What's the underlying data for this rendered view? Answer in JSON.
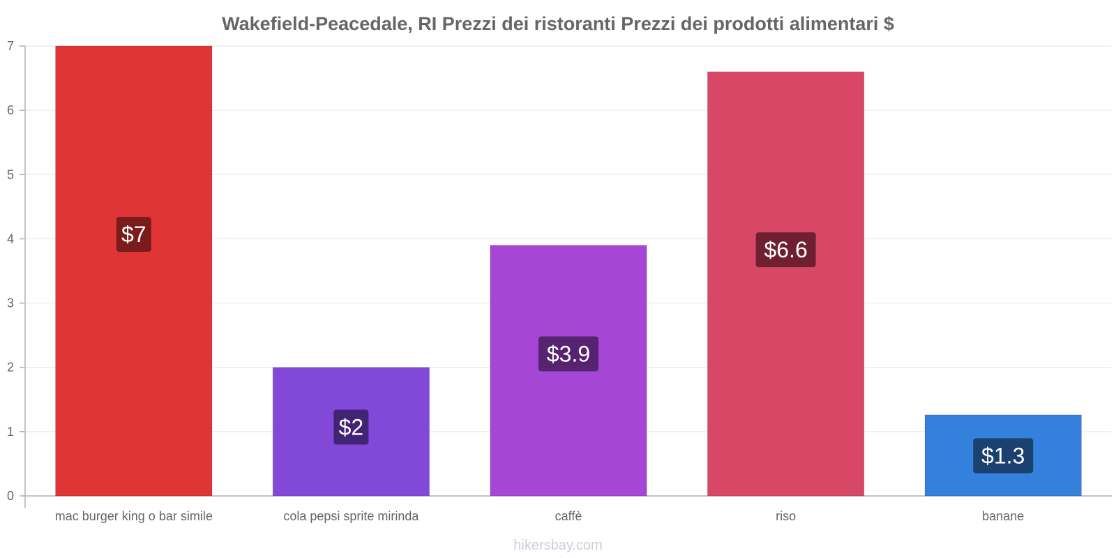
{
  "chart_data": {
    "type": "bar",
    "title": "Wakefield-Peacedale, RI Prezzi dei ristoranti Prezzi dei prodotti alimentari $",
    "categories": [
      "mac burger king o bar simile",
      "cola pepsi sprite mirinda",
      "caffè",
      "riso",
      "banane"
    ],
    "values": [
      7,
      2,
      3.9,
      6.6,
      1.26
    ],
    "data_labels": [
      "$7",
      "$2",
      "$3.9",
      "$6.6",
      "$1.3"
    ],
    "bar_colors": [
      "#e03535",
      "#8249d9",
      "#a646d6",
      "#d84866",
      "#3380dd"
    ],
    "label_bg_colors": [
      "#7a1c1c",
      "#422474",
      "#55236f",
      "#6e2030",
      "#1b416f"
    ],
    "xlabel": "",
    "ylabel": "",
    "ylim": [
      0,
      7
    ],
    "yticks": [
      0,
      1,
      2,
      3,
      4,
      5,
      6,
      7
    ],
    "grid": true,
    "legend": "none"
  },
  "watermark": "hikersbay.com"
}
